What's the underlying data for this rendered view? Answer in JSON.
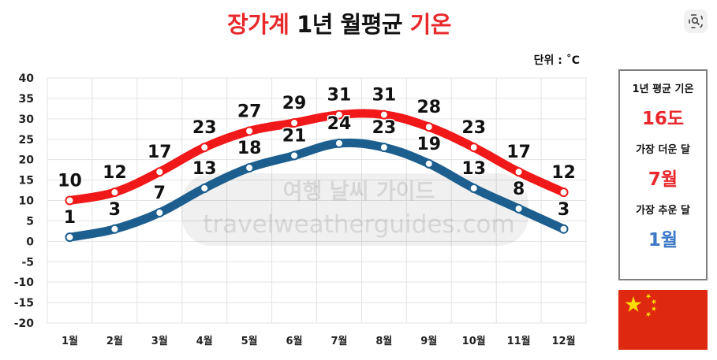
{
  "title": {
    "part1": "장가계",
    "part2": " 1년 월평균 ",
    "part3": "기온",
    "red_color": "#e8282b"
  },
  "unit_label": "단위 : ˚C",
  "watermark": {
    "line1": "여행 날씨 가이드",
    "line2": "travelweatherguides.com"
  },
  "info": {
    "avg_label": "1년 평균 기온",
    "avg_value": "16도",
    "hottest_label": "가장 더운 달",
    "hottest_value": "7월",
    "coldest_label": "가장 추운 달",
    "coldest_value": "1월",
    "hot_color": "#e8282b",
    "cold_color": "#3d78c8"
  },
  "flag": {
    "country": "china-flag-icon",
    "color": "#de2910",
    "star_color": "#ffde00"
  },
  "toolbar": {
    "lens_icon": "lens-search-icon"
  },
  "chart_data": {
    "type": "line",
    "categories": [
      "1월",
      "2월",
      "3월",
      "4월",
      "5월",
      "6월",
      "7월",
      "8월",
      "9월",
      "10월",
      "11월",
      "12월"
    ],
    "series": [
      {
        "values": [
          10,
          12,
          17,
          23,
          27,
          29,
          31,
          31,
          28,
          23,
          17,
          12
        ],
        "color": "#f01818"
      },
      {
        "values": [
          1,
          3,
          7,
          13,
          18,
          21,
          24,
          23,
          19,
          13,
          8,
          3
        ],
        "color": "#1c5f8f"
      }
    ],
    "ylim": [
      -20,
      40
    ],
    "yticks": [
      40,
      35,
      30,
      25,
      20,
      15,
      10,
      5,
      0,
      -5,
      -10,
      -15,
      -20
    ],
    "grid": true,
    "xlabel": "",
    "ylabel": ""
  }
}
